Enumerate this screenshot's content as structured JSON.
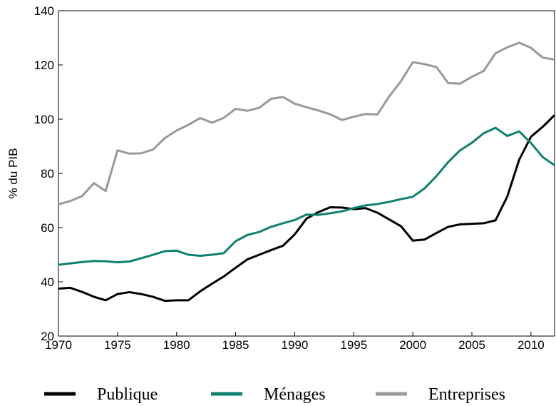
{
  "chart_data": {
    "type": "line",
    "ylabel": "% du PIB",
    "x": [
      1970,
      1971,
      1972,
      1973,
      1974,
      1975,
      1976,
      1977,
      1978,
      1979,
      1980,
      1981,
      1982,
      1983,
      1984,
      1985,
      1986,
      1987,
      1988,
      1989,
      1990,
      1991,
      1992,
      1993,
      1994,
      1995,
      1996,
      1997,
      1998,
      1999,
      2000,
      2001,
      2002,
      2003,
      2004,
      2005,
      2006,
      2007,
      2008,
      2009,
      2010,
      2011,
      2012
    ],
    "series": [
      {
        "name": "Publique",
        "color": "#000000",
        "values": [
          37.5,
          37.8,
          36.3,
          34.5,
          33.2,
          35.5,
          36.2,
          35.5,
          34.5,
          33.0,
          33.2,
          33.2,
          36.5,
          39.3,
          42,
          45.2,
          48.3,
          50,
          51.7,
          53.3,
          57.5,
          63.3,
          65.7,
          67.5,
          67.4,
          66.8,
          67.2,
          65.5,
          63,
          60.5,
          55.2,
          55.6,
          58,
          60.3,
          61.2,
          61.4,
          61.6,
          62.7,
          71.5,
          85,
          93.5,
          97.2,
          101.5
        ]
      },
      {
        "name": "Ménages",
        "color": "#0f8070",
        "values": [
          46.3,
          46.8,
          47.3,
          47.7,
          47.6,
          47.2,
          47.5,
          48.7,
          50,
          51.3,
          51.5,
          50,
          49.6,
          50,
          50.6,
          55,
          57.3,
          58.4,
          60.3,
          61.6,
          62.8,
          64.8,
          64.7,
          65.3,
          66,
          67.2,
          68.2,
          68.7,
          69.5,
          70.5,
          71.4,
          74.5,
          79,
          84.2,
          88.5,
          91.3,
          94.8,
          96.8,
          93.8,
          95.5,
          91.2,
          86,
          83
        ]
      },
      {
        "name": "Entreprises",
        "color": "#999999",
        "values": [
          68.6,
          69.8,
          71.6,
          76.4,
          73.5,
          88.5,
          87.3,
          87.4,
          88.8,
          93,
          95.8,
          97.9,
          100.4,
          98.7,
          100.5,
          103.8,
          103.1,
          104.2,
          107.5,
          108.2,
          105.7,
          104.4,
          103.2,
          101.8,
          99.7,
          100.9,
          101.9,
          101.7,
          108.4,
          114,
          121,
          120.3,
          119.2,
          113.3,
          113.1,
          115.6,
          117.8,
          124.3,
          126.5,
          128.2,
          126.3,
          122.7,
          122
        ]
      }
    ],
    "xlim": [
      1970,
      2012
    ],
    "xticks": [
      1970,
      1975,
      1980,
      1985,
      1990,
      1995,
      2000,
      2005,
      2010
    ],
    "ylim": [
      20,
      140
    ],
    "yticks": [
      20,
      40,
      60,
      80,
      100,
      120,
      140
    ],
    "legend": "bottom"
  }
}
